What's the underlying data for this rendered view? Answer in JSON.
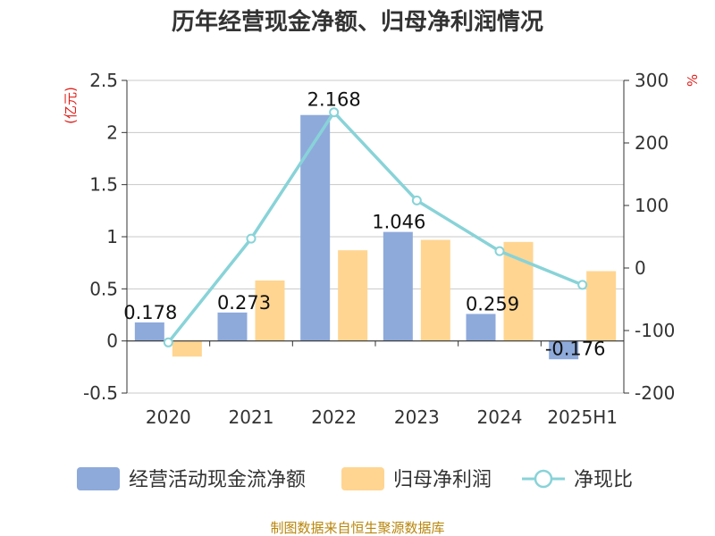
{
  "chart_data": {
    "type": "bar",
    "title": "历年经营现金净额、归母净利润情况",
    "categories": [
      "2020",
      "2021",
      "2022",
      "2023",
      "2024",
      "2025H1"
    ],
    "series": [
      {
        "name": "经营活动现金流净额",
        "type": "bar",
        "axis": "left",
        "color": "#8eaadb",
        "values": [
          0.178,
          0.273,
          2.168,
          1.046,
          0.259,
          -0.176
        ]
      },
      {
        "name": "归母净利润",
        "type": "bar",
        "axis": "left",
        "color": "#ffd591",
        "values": [
          -0.15,
          0.58,
          0.87,
          0.97,
          0.95,
          0.67
        ]
      },
      {
        "name": "净现比",
        "type": "line",
        "axis": "right",
        "color": "#88d3d8",
        "values": [
          -119,
          47,
          249,
          108,
          27,
          -27
        ]
      }
    ],
    "data_labels": [
      "0.178",
      "0.273",
      "2.168",
      "1.046",
      "0.259",
      "-0.176"
    ],
    "y_left": {
      "unit": "(亿元)",
      "lim": [
        -0.5,
        2.5
      ],
      "ticks": [
        "2.5",
        "2",
        "1.5",
        "1",
        "0.5",
        "0",
        "-0.5"
      ],
      "tick_values": [
        2.5,
        2,
        1.5,
        1,
        0.5,
        0,
        -0.5
      ]
    },
    "y_right": {
      "unit": "%",
      "lim": [
        -200,
        300
      ],
      "ticks": [
        "300",
        "200",
        "100",
        "0",
        "-100",
        "-200"
      ],
      "tick_values": [
        300,
        200,
        100,
        0,
        -100,
        -200
      ]
    },
    "grid": true,
    "legend_position": "bottom"
  },
  "source": "制图数据来自恒生聚源数据库"
}
